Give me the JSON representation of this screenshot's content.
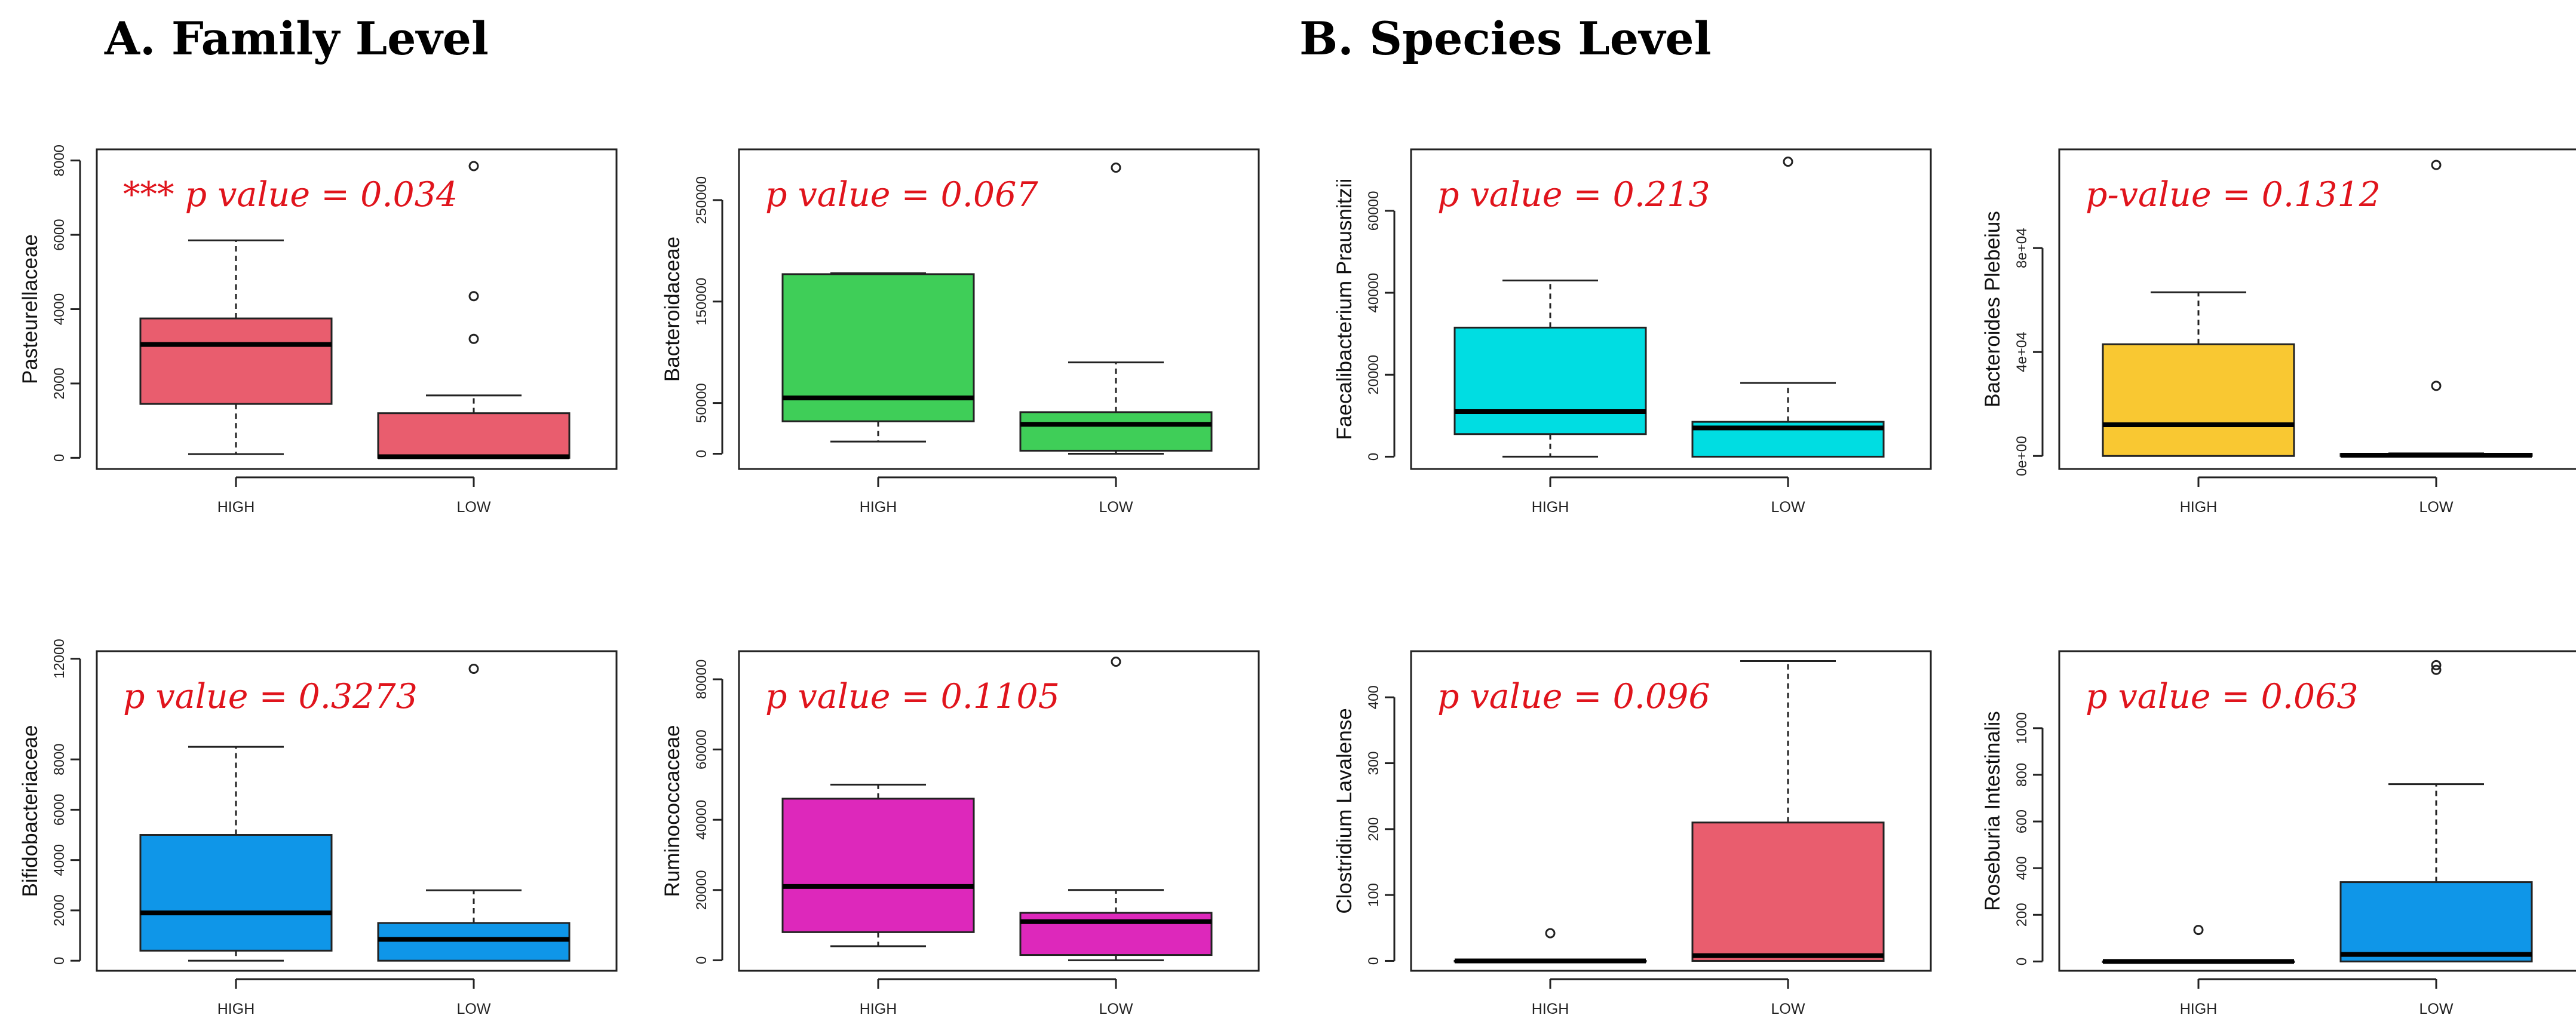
{
  "headings": {
    "family": "A.   Family Level",
    "species": "B. Species Level"
  },
  "chart_data": [
    {
      "type": "boxplot",
      "ylabel": "Pasteurellaceae",
      "annotation": "*** p value = 0.034",
      "color": "#e95d6e",
      "categories": [
        "HIGH",
        "LOW"
      ],
      "ylim": [
        -300,
        8300
      ],
      "yticks": [
        0,
        2000,
        4000,
        6000,
        8000
      ],
      "yticklabels": [
        "0",
        "2000",
        "4000",
        "6000",
        "8000"
      ],
      "boxes": [
        {
          "min": 100,
          "q1": 1450,
          "median": 3050,
          "q3": 3750,
          "max": 5850,
          "outliers": []
        },
        {
          "min": 0,
          "q1": 0,
          "median": 30,
          "q3": 1200,
          "max": 1680,
          "outliers": [
            3200,
            4350,
            7850
          ]
        }
      ]
    },
    {
      "type": "boxplot",
      "ylabel": "Bacteroidaceae",
      "annotation": "p value = 0.067",
      "color": "#3fce58",
      "categories": [
        "HIGH",
        "LOW"
      ],
      "ylim": [
        -15000,
        300000
      ],
      "yticks": [
        0,
        50000,
        150000,
        250000
      ],
      "yticklabels": [
        "0",
        "50000",
        "150000",
        "250000"
      ],
      "boxes": [
        {
          "min": 12000,
          "q1": 32000,
          "median": 55000,
          "q3": 177000,
          "max": 178000,
          "outliers": []
        },
        {
          "min": 0,
          "q1": 3000,
          "median": 29000,
          "q3": 41000,
          "max": 90000,
          "outliers": [
            282000
          ]
        }
      ]
    },
    {
      "type": "boxplot",
      "ylabel": "Faecalibacterium Prausnitzii",
      "annotation": "p value = 0.213",
      "color": "#00dde2",
      "categories": [
        "HIGH",
        "LOW"
      ],
      "ylim": [
        -3000,
        75000
      ],
      "yticks": [
        0,
        20000,
        40000,
        60000
      ],
      "yticklabels": [
        "0",
        "20000",
        "40000",
        "60000"
      ],
      "boxes": [
        {
          "min": 0,
          "q1": 5500,
          "median": 11000,
          "q3": 31500,
          "max": 43000,
          "outliers": []
        },
        {
          "min": 0,
          "q1": 0,
          "median": 7000,
          "q3": 8500,
          "max": 18000,
          "outliers": [
            72000
          ]
        }
      ]
    },
    {
      "type": "boxplot",
      "ylabel": "Bacteroides Plebeius",
      "annotation": "p-value = 0.1312",
      "color": "#f9c832",
      "categories": [
        "HIGH",
        "LOW"
      ],
      "ylim": [
        -5000,
        118000
      ],
      "yticks": [
        0,
        40000,
        80000
      ],
      "yticklabels": [
        "0e+00",
        "4e+04",
        "8e+04"
      ],
      "boxes": [
        {
          "min": 0,
          "q1": 0,
          "median": 12000,
          "q3": 43000,
          "max": 63000,
          "outliers": []
        },
        {
          "min": 0,
          "q1": 0,
          "median": 300,
          "q3": 800,
          "max": 1000,
          "outliers": [
            27000,
            112000
          ]
        }
      ]
    },
    {
      "type": "boxplot",
      "ylabel": "Bifidobacteriaceae",
      "annotation": "p value = 0.3273",
      "color": "#0f96e8",
      "categories": [
        "HIGH",
        "LOW"
      ],
      "ylim": [
        -400,
        12300
      ],
      "yticks": [
        0,
        2000,
        4000,
        6000,
        8000,
        12000
      ],
      "yticklabels": [
        "0",
        "2000",
        "4000",
        "6000",
        "8000",
        "12000"
      ],
      "boxes": [
        {
          "min": 0,
          "q1": 400,
          "median": 1900,
          "q3": 5000,
          "max": 8500,
          "outliers": []
        },
        {
          "min": 0,
          "q1": 0,
          "median": 850,
          "q3": 1500,
          "max": 2800,
          "outliers": [
            11600
          ]
        }
      ]
    },
    {
      "type": "boxplot",
      "ylabel": "Ruminococcaceae",
      "annotation": "p value = 0.1105",
      "color": "#dd28bb",
      "categories": [
        "HIGH",
        "LOW"
      ],
      "ylim": [
        -3000,
        88000
      ],
      "yticks": [
        0,
        20000,
        40000,
        60000,
        80000
      ],
      "yticklabels": [
        "0",
        "20000",
        "40000",
        "60000",
        "80000"
      ],
      "boxes": [
        {
          "min": 4000,
          "q1": 8000,
          "median": 21000,
          "q3": 46000,
          "max": 50000,
          "outliers": []
        },
        {
          "min": 0,
          "q1": 1500,
          "median": 11000,
          "q3": 13500,
          "max": 20000,
          "outliers": [
            85000
          ]
        }
      ]
    },
    {
      "type": "boxplot",
      "ylabel": "Clostridium Lavalense",
      "annotation": "p value = 0.096",
      "color": "#e95d6e",
      "categories": [
        "HIGH",
        "LOW"
      ],
      "ylim": [
        -15,
        470
      ],
      "yticks": [
        0,
        100,
        200,
        300,
        400
      ],
      "yticklabels": [
        "0",
        "100",
        "200",
        "300",
        "400"
      ],
      "boxes": [
        {
          "min": 0,
          "q1": 0,
          "median": 0,
          "q3": 0,
          "max": 0,
          "outliers": [
            42
          ]
        },
        {
          "min": 0,
          "q1": 0,
          "median": 8,
          "q3": 210,
          "max": 455,
          "outliers": []
        }
      ]
    },
    {
      "type": "boxplot",
      "ylabel": "Roseburia Intestinalis",
      "annotation": "p value = 0.063",
      "color": "#0f96e8",
      "categories": [
        "HIGH",
        "LOW"
      ],
      "ylim": [
        -40,
        1330
      ],
      "yticks": [
        0,
        200,
        400,
        600,
        800,
        1000
      ],
      "yticklabels": [
        "0",
        "200",
        "400",
        "600",
        "800",
        "1000"
      ],
      "boxes": [
        {
          "min": 0,
          "q1": 0,
          "median": 0,
          "q3": 0,
          "max": 0,
          "outliers": [
            135
          ]
        },
        {
          "min": 0,
          "q1": 0,
          "median": 30,
          "q3": 340,
          "max": 760,
          "outliers": [
            1250,
            1270
          ]
        }
      ]
    }
  ]
}
